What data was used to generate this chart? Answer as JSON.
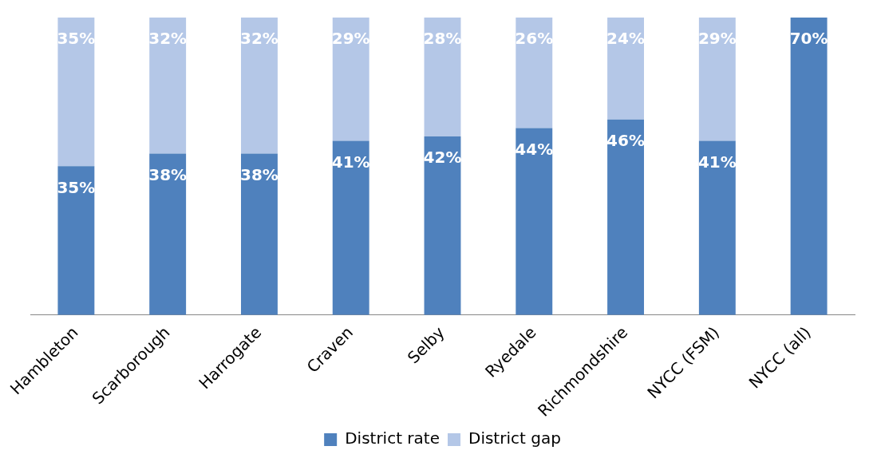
{
  "chart_data": {
    "type": "bar",
    "stacked": true,
    "categories": [
      "Hambleton",
      "Scarborough",
      "Harrogate",
      "Craven",
      "Selby",
      "Ryedale",
      "Richmondshire",
      "NYCC (FSM)",
      "NYCC (all)"
    ],
    "series": [
      {
        "name": "District rate",
        "color": "#4f81bd",
        "values": [
          35,
          38,
          38,
          41,
          42,
          44,
          46,
          41,
          70
        ],
        "value_labels": [
          "35%",
          "38%",
          "38%",
          "41%",
          "42%",
          "44%",
          "46%",
          "41%",
          "70%"
        ]
      },
      {
        "name": "District gap",
        "color": "#b4c7e7",
        "values": [
          35,
          32,
          32,
          29,
          28,
          26,
          24,
          29,
          null
        ],
        "value_labels": [
          "35%",
          "32%",
          "32%",
          "29%",
          "28%",
          "26%",
          "24%",
          "29%",
          null
        ]
      }
    ],
    "legend": "bottom"
  }
}
